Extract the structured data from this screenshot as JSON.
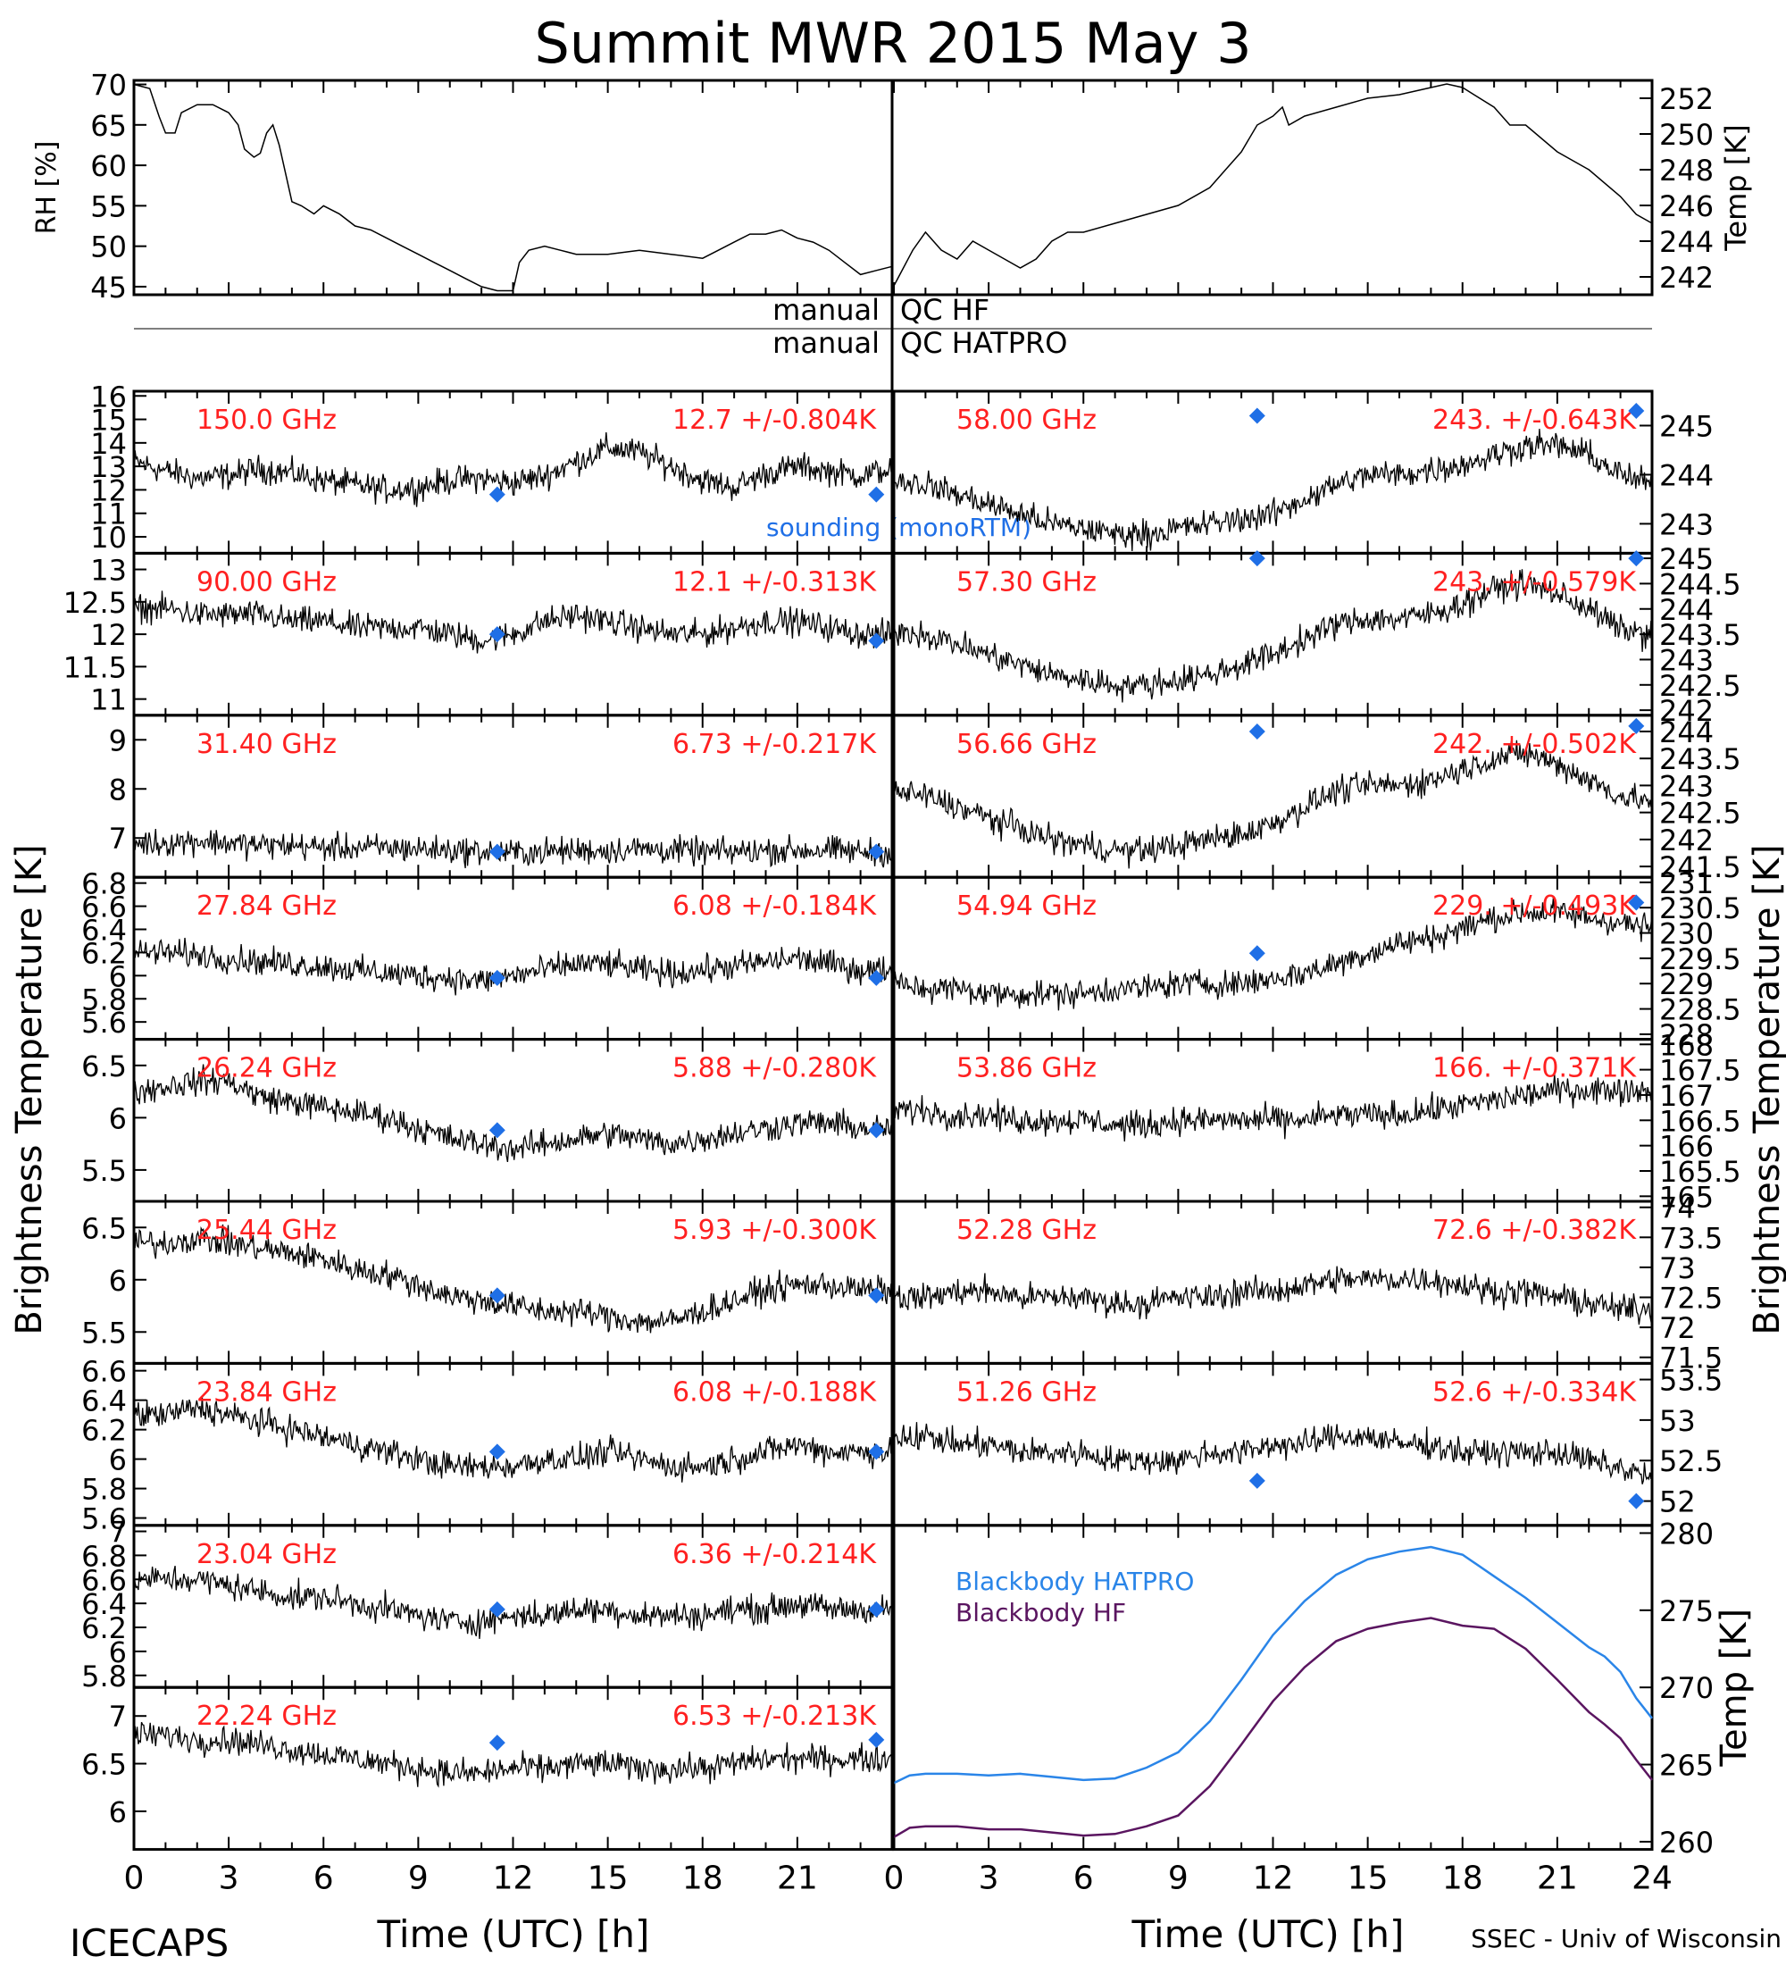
{
  "title": "Summit MWR 2015 May  3",
  "footer": {
    "left": "ICECAPS",
    "right": "SSEC - Univ of Wisconsin",
    "xlabel_left": "Time (UTC) [h]",
    "xlabel_right": "Time (UTC) [h]"
  },
  "qc_labels": {
    "manual1": "manual",
    "qc1": "QC HF",
    "manual2": "manual",
    "qc2": "QC HATPRO"
  },
  "side_labels": {
    "left": "Brightness Temperature [K]",
    "right": "Brightness Temperature [K]"
  },
  "legend": {
    "sounding": "sounding (monoRTM)",
    "bb_hatpro": "Blackbody HATPRO",
    "bb_hf": "Blackbody HF"
  },
  "colors": {
    "trace": "#000000",
    "stats_text": "#ff2020",
    "sounding_marker": "#1f6fe6",
    "bb_hatpro": "#2a85e8",
    "bb_hf": "#5a1560"
  },
  "chart_data": [
    {
      "id": "rh_temp",
      "type": "line",
      "xlabel": "",
      "xlim": [
        0,
        24
      ],
      "left_axis": {
        "label": "RH [%]",
        "ylim": [
          44,
          70.5
        ],
        "ticks": [
          45,
          50,
          55,
          60,
          65,
          70
        ]
      },
      "right_axis": {
        "label": "Temp [K]",
        "ylim": [
          241,
          253
        ],
        "ticks": [
          242,
          244,
          246,
          248,
          250,
          252
        ]
      },
      "series": [
        {
          "axis": "left",
          "x": [
            0,
            0.5,
            0.8,
            1.0,
            1.3,
            1.5,
            2.0,
            2.5,
            3.0,
            3.3,
            3.5,
            3.8,
            4.0,
            4.2,
            4.4,
            4.6,
            4.8,
            5.0,
            5.3,
            5.7,
            6.0,
            6.5,
            7.0,
            7.5,
            8.0,
            8.5,
            9.0,
            9.5,
            10.0,
            10.5,
            11.0,
            11.5,
            12.0,
            12.2,
            12.5,
            13.0,
            13.5,
            14.0,
            14.5,
            15.0,
            16.0,
            17.0,
            18.0,
            18.5,
            19.0,
            19.5,
            20.0,
            20.5,
            21.0,
            21.5,
            22.0,
            22.5,
            23.0,
            23.5,
            24.0
          ],
          "values": [
            70,
            69.5,
            66,
            64,
            64,
            66.5,
            67.5,
            67.5,
            66.5,
            65,
            62,
            61,
            61.5,
            64,
            65,
            62.5,
            59,
            55.5,
            55,
            54,
            55,
            54,
            52.5,
            52,
            51,
            50,
            49,
            48,
            47,
            46,
            45,
            44.5,
            44.5,
            48,
            49.5,
            50,
            49.5,
            49,
            49,
            49,
            49.5,
            49,
            48.5,
            49.5,
            50.5,
            51.5,
            51.5,
            52,
            51,
            50.5,
            49.5,
            48,
            46.5,
            47,
            47.5
          ]
        },
        {
          "axis": "right",
          "x": [
            0,
            0.3,
            0.6,
            1.0,
            1.5,
            2.0,
            2.5,
            3.0,
            3.5,
            4.0,
            4.5,
            5.0,
            5.5,
            6.0,
            7.0,
            8.0,
            9.0,
            10.0,
            10.5,
            11.0,
            11.5,
            12.0,
            12.3,
            12.5,
            13.0,
            14.0,
            15.0,
            16.0,
            17.0,
            17.5,
            18.0,
            19.0,
            19.5,
            20.0,
            21.0,
            22.0,
            23.0,
            23.5,
            24.0
          ],
          "values": [
            241.5,
            242.5,
            243.5,
            244.5,
            243.5,
            243.0,
            244.0,
            243.5,
            243.0,
            242.5,
            243.0,
            244.0,
            244.5,
            244.5,
            245.0,
            245.5,
            246.0,
            247.0,
            248.0,
            249.0,
            250.5,
            251.0,
            251.5,
            250.5,
            251.0,
            251.5,
            252.0,
            252.2,
            252.6,
            252.8,
            252.6,
            251.5,
            250.5,
            250.5,
            249.0,
            248.0,
            246.5,
            245.5,
            245.0
          ]
        }
      ]
    },
    {
      "id": "ch150",
      "type": "line",
      "label": "150.0 GHz",
      "stats": "12.7 +/-0.804K",
      "ylim": [
        9.3,
        16.2
      ],
      "ticks": [
        10,
        11,
        12,
        13,
        14,
        15,
        16
      ],
      "sounding_x": [
        11.5,
        23.5
      ],
      "sounding_y": [
        11.8,
        11.8
      ],
      "values": [
        13.2,
        12.8,
        12.5,
        12.6,
        12.9,
        12.7,
        12.4,
        12.2,
        12.0,
        12.1,
        12.4,
        12.5,
        12.3,
        12.6,
        13.2,
        13.8,
        13.6,
        13.0,
        12.4,
        12.1,
        12.7,
        13.0,
        12.8,
        12.6,
        12.9
      ]
    },
    {
      "id": "ch90",
      "type": "line",
      "label": "90.00 GHz",
      "stats": "12.1 +/-0.313K",
      "ylim": [
        10.75,
        13.25
      ],
      "ticks": [
        11.0,
        11.5,
        12.0,
        12.5,
        13.0
      ],
      "sounding_x": [
        11.5,
        23.5
      ],
      "sounding_y": [
        12.0,
        11.9
      ],
      "values": [
        12.4,
        12.4,
        12.3,
        12.3,
        12.3,
        12.2,
        12.2,
        12.1,
        12.1,
        12.1,
        12.0,
        11.9,
        12.0,
        12.2,
        12.3,
        12.2,
        12.1,
        12.0,
        12.0,
        12.1,
        12.2,
        12.2,
        12.1,
        12.0,
        12.0
      ]
    },
    {
      "id": "ch3140",
      "type": "line",
      "label": "31.40 GHz",
      "stats": "6.73 +/-0.217K",
      "ylim": [
        6.2,
        9.5
      ],
      "ticks": [
        7,
        8,
        9
      ],
      "sounding_x": [
        11.5,
        23.5
      ],
      "sounding_y": [
        6.72,
        6.72
      ],
      "values": [
        6.9,
        6.9,
        6.95,
        6.9,
        6.85,
        6.85,
        6.8,
        6.8,
        6.8,
        6.78,
        6.75,
        6.72,
        6.7,
        6.72,
        6.75,
        6.75,
        6.78,
        6.75,
        6.72,
        6.72,
        6.75,
        6.75,
        6.75,
        6.72,
        6.72
      ]
    },
    {
      "id": "ch2784",
      "type": "line",
      "label": "27.84 GHz",
      "stats": "6.08 +/-0.184K",
      "ylim": [
        5.45,
        6.85
      ],
      "ticks": [
        5.6,
        5.8,
        6.0,
        6.2,
        6.4,
        6.6,
        6.8
      ],
      "sounding_x": [
        11.5,
        23.5
      ],
      "sounding_y": [
        5.98,
        5.98
      ],
      "values": [
        6.2,
        6.2,
        6.18,
        6.15,
        6.12,
        6.1,
        6.08,
        6.05,
        6.02,
        6.0,
        5.98,
        5.95,
        6.0,
        6.05,
        6.1,
        6.1,
        6.05,
        6.02,
        6.05,
        6.08,
        6.12,
        6.15,
        6.1,
        6.05,
        6.05
      ]
    },
    {
      "id": "ch2624",
      "type": "line",
      "label": "26.24 GHz",
      "stats": "5.88 +/-0.280K",
      "ylim": [
        5.2,
        6.75
      ],
      "ticks": [
        5.5,
        6.0,
        6.5
      ],
      "sounding_x": [
        11.5,
        23.5
      ],
      "sounding_y": [
        5.88,
        5.88
      ],
      "values": [
        6.25,
        6.3,
        6.35,
        6.35,
        6.2,
        6.15,
        6.1,
        6.05,
        6.0,
        5.9,
        5.8,
        5.75,
        5.7,
        5.75,
        5.8,
        5.85,
        5.8,
        5.75,
        5.8,
        5.85,
        5.9,
        5.95,
        5.95,
        5.9,
        5.9
      ]
    },
    {
      "id": "ch2544",
      "type": "line",
      "label": "25.44 GHz",
      "stats": "5.93 +/-0.300K",
      "ylim": [
        5.2,
        6.75
      ],
      "ticks": [
        5.5,
        6.0,
        6.5
      ],
      "sounding_x": [
        11.5,
        23.5
      ],
      "sounding_y": [
        5.85,
        5.85
      ],
      "values": [
        6.35,
        6.35,
        6.4,
        6.35,
        6.3,
        6.25,
        6.2,
        6.1,
        6.05,
        5.95,
        5.85,
        5.8,
        5.75,
        5.7,
        5.7,
        5.65,
        5.6,
        5.6,
        5.7,
        5.8,
        5.9,
        5.95,
        5.95,
        5.9,
        5.9
      ]
    },
    {
      "id": "ch2384",
      "type": "line",
      "label": "23.84 GHz",
      "stats": "6.08 +/-0.188K",
      "ylim": [
        5.55,
        6.65
      ],
      "ticks": [
        5.6,
        5.8,
        6.0,
        6.2,
        6.4,
        6.6
      ],
      "sounding_x": [
        11.5,
        23.5
      ],
      "sounding_y": [
        6.05,
        6.05
      ],
      "values": [
        6.3,
        6.3,
        6.35,
        6.3,
        6.25,
        6.2,
        6.15,
        6.1,
        6.05,
        6.0,
        5.95,
        5.95,
        5.95,
        6.0,
        6.0,
        6.05,
        6.0,
        5.95,
        5.95,
        6.0,
        6.05,
        6.1,
        6.05,
        6.05,
        6.05
      ]
    },
    {
      "id": "ch2304",
      "type": "line",
      "label": "23.04 GHz",
      "stats": "6.36 +/-0.214K",
      "ylim": [
        5.7,
        7.05
      ],
      "ticks": [
        5.8,
        6.0,
        6.2,
        6.4,
        6.6,
        6.8,
        7.0
      ],
      "sounding_x": [
        11.5,
        23.5
      ],
      "sounding_y": [
        6.35,
        6.35
      ],
      "values": [
        6.6,
        6.6,
        6.6,
        6.55,
        6.5,
        6.45,
        6.45,
        6.4,
        6.35,
        6.3,
        6.25,
        6.25,
        6.3,
        6.3,
        6.35,
        6.35,
        6.3,
        6.3,
        6.3,
        6.35,
        6.35,
        6.4,
        6.35,
        6.35,
        6.35
      ]
    },
    {
      "id": "ch2224",
      "type": "line",
      "label": "22.24 GHz",
      "stats": "6.53 +/-0.213K",
      "ylim": [
        5.6,
        7.3
      ],
      "ticks": [
        6.0,
        6.5,
        7.0
      ],
      "sounding_x": [
        11.5,
        23.5
      ],
      "sounding_y": [
        6.72,
        6.75
      ],
      "values": [
        6.8,
        6.8,
        6.75,
        6.75,
        6.7,
        6.65,
        6.6,
        6.55,
        6.5,
        6.45,
        6.4,
        6.4,
        6.45,
        6.45,
        6.5,
        6.5,
        6.45,
        6.45,
        6.45,
        6.5,
        6.55,
        6.55,
        6.55,
        6.55,
        6.55
      ]
    },
    {
      "id": "ch5800",
      "type": "line",
      "label": "58.00 GHz",
      "stats": "243. +/-0.643K",
      "ylim": [
        242.4,
        245.7
      ],
      "ticks": [
        243,
        244,
        245
      ],
      "sounding_x": [
        11.5,
        23.5
      ],
      "sounding_y": [
        245.2,
        245.3
      ],
      "values": [
        243.9,
        243.8,
        243.6,
        243.4,
        243.2,
        243.0,
        242.9,
        242.8,
        242.8,
        242.9,
        243.0,
        243.1,
        243.2,
        243.5,
        243.8,
        244.0,
        244.0,
        244.1,
        244.2,
        244.4,
        244.6,
        244.6,
        244.4,
        244.0,
        243.8
      ]
    },
    {
      "id": "ch5730",
      "type": "line",
      "label": "57.30 GHz",
      "stats": "243. +/-0.579K",
      "ylim": [
        241.9,
        245.1
      ],
      "ticks": [
        242.0,
        242.5,
        243.0,
        243.5,
        244.0,
        244.5,
        245.0
      ],
      "sounding_x": [
        11.5,
        23.5
      ],
      "sounding_y": [
        245.0,
        245.0
      ],
      "values": [
        243.6,
        243.5,
        243.3,
        243.1,
        242.9,
        242.7,
        242.6,
        242.5,
        242.5,
        242.6,
        242.7,
        242.9,
        243.1,
        243.4,
        243.7,
        243.8,
        243.8,
        243.9,
        244.1,
        244.4,
        244.5,
        244.3,
        244.0,
        243.6,
        243.5
      ]
    },
    {
      "id": "ch5666",
      "type": "line",
      "label": "56.66 GHz",
      "stats": "242. +/-0.502K",
      "ylim": [
        241.3,
        244.3
      ],
      "ticks": [
        241.5,
        242.0,
        242.5,
        243.0,
        243.5,
        244.0
      ],
      "sounding_x": [
        11.5,
        23.5
      ],
      "sounding_y": [
        244.0,
        244.1
      ],
      "values": [
        242.9,
        242.8,
        242.6,
        242.4,
        242.2,
        242.0,
        241.9,
        241.8,
        241.8,
        241.9,
        242.0,
        242.1,
        242.3,
        242.6,
        242.9,
        243.0,
        243.0,
        243.1,
        243.3,
        243.5,
        243.6,
        243.4,
        243.1,
        242.8,
        242.7
      ]
    },
    {
      "id": "ch5494",
      "type": "line",
      "label": "54.94 GHz",
      "stats": "229. +/-0.493K",
      "ylim": [
        227.9,
        231.1
      ],
      "ticks": [
        228.0,
        228.5,
        229.0,
        229.5,
        230.0,
        230.5,
        231.0
      ],
      "sounding_x": [
        11.5,
        23.5
      ],
      "sounding_y": [
        229.6,
        230.6
      ],
      "values": [
        229.0,
        228.9,
        228.9,
        228.8,
        228.8,
        228.8,
        228.8,
        228.9,
        228.9,
        229.0,
        229.0,
        229.0,
        229.1,
        229.2,
        229.4,
        229.6,
        229.8,
        229.9,
        230.1,
        230.3,
        230.4,
        230.4,
        230.3,
        230.2,
        230.1
      ]
    },
    {
      "id": "ch5386",
      "type": "line",
      "label": "53.86 GHz",
      "stats": "166. +/-0.371K",
      "ylim": [
        164.9,
        168.1
      ],
      "ticks": [
        165.0,
        165.5,
        166.0,
        166.5,
        167.0,
        167.5,
        168.0
      ],
      "sounding_x": [],
      "sounding_y": [],
      "values": [
        166.7,
        166.7,
        166.6,
        166.6,
        166.5,
        166.5,
        166.5,
        166.4,
        166.4,
        166.5,
        166.5,
        166.5,
        166.5,
        166.5,
        166.6,
        166.6,
        166.6,
        166.7,
        166.8,
        166.9,
        167.0,
        167.1,
        167.1,
        167.1,
        167.1
      ]
    },
    {
      "id": "ch5228",
      "type": "line",
      "label": "52.28 GHz",
      "stats": "72.6 +/-0.382K",
      "ylim": [
        71.4,
        74.1
      ],
      "ticks": [
        71.5,
        72.0,
        72.5,
        73.0,
        73.5,
        74.0
      ],
      "sounding_x": [],
      "sounding_y": [],
      "values": [
        72.5,
        72.5,
        72.6,
        72.6,
        72.5,
        72.5,
        72.5,
        72.4,
        72.4,
        72.5,
        72.5,
        72.6,
        72.6,
        72.7,
        72.8,
        72.8,
        72.8,
        72.8,
        72.7,
        72.6,
        72.6,
        72.5,
        72.4,
        72.3,
        72.3
      ]
    },
    {
      "id": "ch5126",
      "type": "line",
      "label": "51.26 GHz",
      "stats": "52.6 +/-0.334K",
      "ylim": [
        51.7,
        53.7
      ],
      "ticks": [
        52.0,
        52.5,
        53.0,
        53.5
      ],
      "sounding_x": [
        11.5,
        23.5
      ],
      "sounding_y": [
        52.25,
        52.0
      ],
      "values": [
        52.8,
        52.8,
        52.7,
        52.7,
        52.6,
        52.6,
        52.6,
        52.5,
        52.5,
        52.5,
        52.6,
        52.6,
        52.7,
        52.7,
        52.8,
        52.8,
        52.7,
        52.7,
        52.6,
        52.6,
        52.6,
        52.6,
        52.5,
        52.4,
        52.3
      ]
    },
    {
      "id": "blackbody",
      "type": "line",
      "ylabel": "Temp [K]",
      "ylim": [
        259.5,
        280.5
      ],
      "ticks": [
        260,
        265,
        270,
        275,
        280
      ],
      "x": [
        0,
        0.5,
        1,
        2,
        3,
        4,
        5,
        6,
        7,
        8,
        9,
        10,
        11,
        12,
        13,
        14,
        15,
        16,
        17,
        18,
        19,
        20,
        21,
        22,
        22.5,
        23,
        23.5,
        24
      ],
      "series": [
        {
          "name": "Blackbody HATPRO",
          "values": [
            263.8,
            264.3,
            264.4,
            264.4,
            264.3,
            264.4,
            264.2,
            264.0,
            264.1,
            264.8,
            265.8,
            267.8,
            270.5,
            273.4,
            275.6,
            277.3,
            278.3,
            278.8,
            279.1,
            278.6,
            277.2,
            275.8,
            274.2,
            272.6,
            272.0,
            271.0,
            269.3,
            268.0
          ]
        },
        {
          "name": "Blackbody HF",
          "values": [
            260.3,
            260.9,
            261.0,
            261.0,
            260.8,
            260.8,
            260.6,
            260.4,
            260.5,
            261.0,
            261.7,
            263.6,
            266.3,
            269.1,
            271.3,
            273.0,
            273.8,
            274.2,
            274.5,
            274.0,
            273.8,
            272.5,
            270.5,
            268.4,
            267.6,
            266.7,
            265.3,
            264.0
          ]
        }
      ]
    }
  ]
}
